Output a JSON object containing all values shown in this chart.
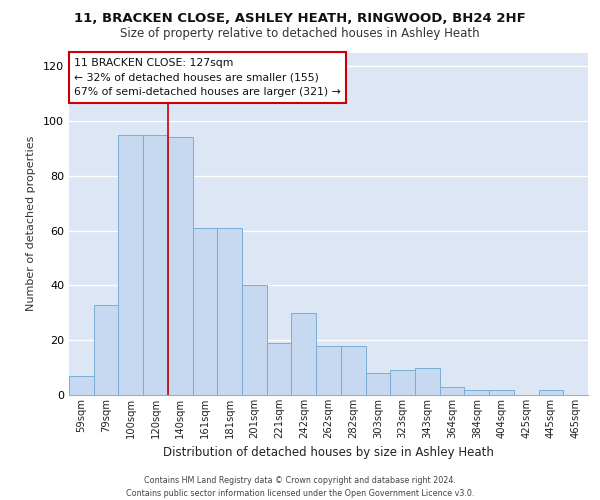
{
  "title_line1": "11, BRACKEN CLOSE, ASHLEY HEATH, RINGWOOD, BH24 2HF",
  "title_line2": "Size of property relative to detached houses in Ashley Heath",
  "xlabel": "Distribution of detached houses by size in Ashley Heath",
  "ylabel": "Number of detached properties",
  "categories": [
    "59sqm",
    "79sqm",
    "100sqm",
    "120sqm",
    "140sqm",
    "161sqm",
    "181sqm",
    "201sqm",
    "221sqm",
    "242sqm",
    "262sqm",
    "282sqm",
    "303sqm",
    "323sqm",
    "343sqm",
    "364sqm",
    "384sqm",
    "404sqm",
    "425sqm",
    "445sqm",
    "465sqm"
  ],
  "values": [
    7,
    33,
    95,
    95,
    94,
    61,
    61,
    40,
    19,
    30,
    18,
    18,
    8,
    9,
    10,
    3,
    2,
    2,
    0,
    2,
    0
  ],
  "bar_color": "#c6d9f1",
  "bar_edge_color": "#7aadd4",
  "vline_x": 3.5,
  "vline_color": "#cc0000",
  "annotation_text": "11 BRACKEN CLOSE: 127sqm\n← 32% of detached houses are smaller (155)\n67% of semi-detached houses are larger (321) →",
  "annotation_box_color": "#ffffff",
  "annotation_box_edge": "#cc0000",
  "ylim": [
    0,
    125
  ],
  "yticks": [
    0,
    20,
    40,
    60,
    80,
    100,
    120
  ],
  "plot_bg_color": "#dce6f5",
  "fig_bg_color": "#ffffff",
  "grid_color": "#ffffff",
  "footer_line1": "Contains HM Land Registry data © Crown copyright and database right 2024.",
  "footer_line2": "Contains public sector information licensed under the Open Government Licence v3.0."
}
